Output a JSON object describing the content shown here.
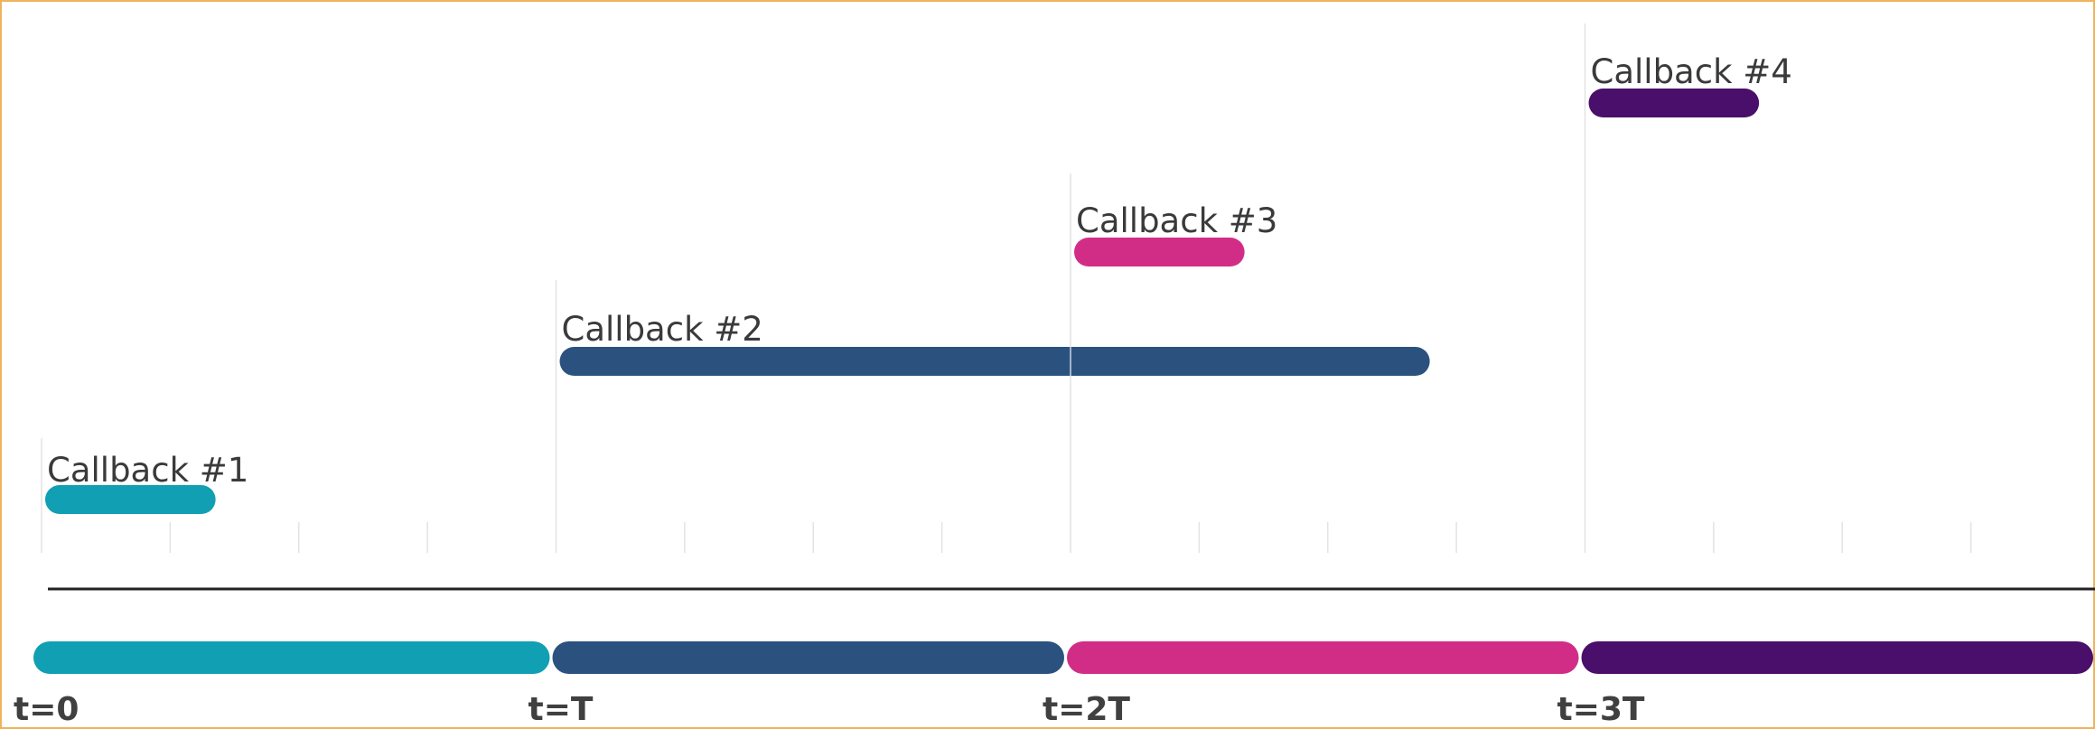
{
  "colors": {
    "callback_1": "#119fb3",
    "callback_2": "#2b527f",
    "callback_3": "#d12d87",
    "callback_4": "#4a0f6a",
    "axis": "#222222",
    "grid": "#e3e3e3",
    "frame": "#f0b35c"
  },
  "callbacks": [
    {
      "label": "Callback #1",
      "start": 0.0,
      "end": 0.34,
      "color_key": "callback_1"
    },
    {
      "label": "Callback #2",
      "start": 1.0,
      "end": 2.7,
      "color_key": "callback_2"
    },
    {
      "label": "Callback #3",
      "start": 2.0,
      "end": 2.34,
      "color_key": "callback_3"
    },
    {
      "label": "Callback #4",
      "start": 3.0,
      "end": 3.34,
      "color_key": "callback_4"
    }
  ],
  "periods": [
    {
      "start": 0,
      "end": 1,
      "color_key": "callback_1"
    },
    {
      "start": 1,
      "end": 2,
      "color_key": "callback_2"
    },
    {
      "start": 2,
      "end": 3,
      "color_key": "callback_3"
    },
    {
      "start": 3,
      "end": 4,
      "color_key": "callback_4"
    }
  ],
  "time_labels": [
    "t=0",
    "t=T",
    "t=2T",
    "t=3T"
  ],
  "minor_ticks_per_period": 4
}
